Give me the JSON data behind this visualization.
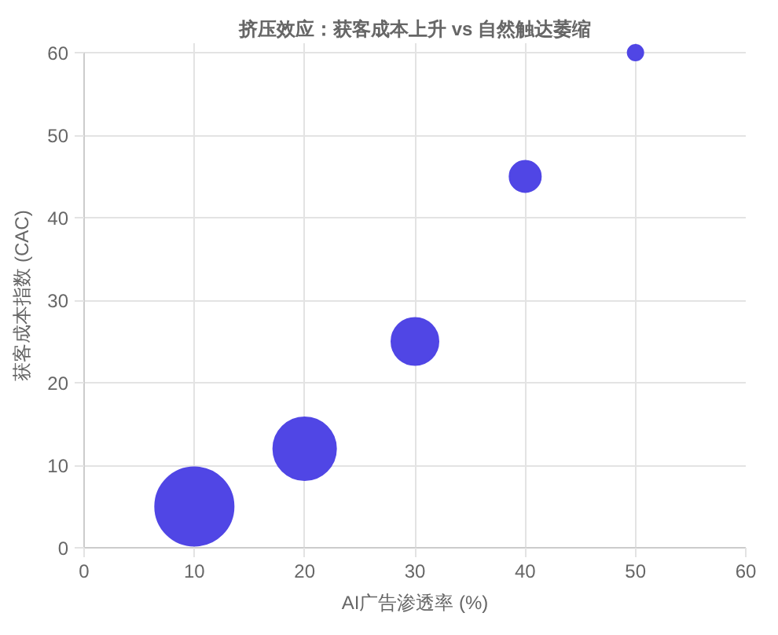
{
  "chart_data": {
    "type": "bubble",
    "title": "挤压效应：获客成本上升 vs 自然触达萎缩",
    "xlabel": "AI广告渗透率 (%)",
    "ylabel": "获客成本指数 (CAC)",
    "x": [
      10,
      20,
      30,
      40,
      50
    ],
    "values": [
      5,
      12,
      25,
      45,
      60
    ],
    "sizes": [
      1,
      0.64,
      0.36,
      0.16,
      0.04
    ],
    "color": "#5046e5",
    "marker": "circle",
    "xlim": [
      0,
      60
    ],
    "ylim": [
      0,
      60
    ],
    "xticks": [
      0,
      10,
      20,
      30,
      40,
      50,
      60
    ],
    "yticks": [
      0,
      10,
      20,
      30,
      40,
      50,
      60
    ],
    "grid": true
  }
}
